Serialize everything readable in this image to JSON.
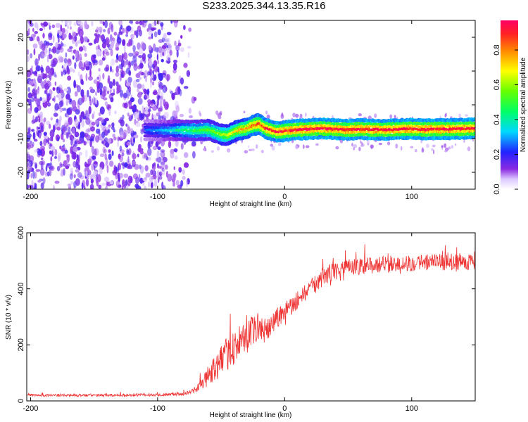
{
  "title": "S233.2025.344.13.35.R16",
  "chart_data": [
    {
      "type": "heatmap",
      "xlabel": "Height of straight line (km)",
      "ylabel": "Frequency (Hz)",
      "xlim": [
        -203,
        150
      ],
      "ylim": [
        -25,
        25
      ],
      "x_ticks": [
        -200,
        -100,
        0,
        100
      ],
      "y_ticks": [
        -20,
        -10,
        0,
        10,
        20
      ],
      "x_tick_labels": [
        "-200",
        "-100",
        "0",
        "100"
      ],
      "y_tick_labels": [
        "-20",
        "-10",
        "0",
        "10",
        "20"
      ],
      "colorbar": {
        "label": "Normalized spectral amplitude",
        "range": [
          0.0,
          0.97
        ],
        "ticks": [
          0.0,
          0.2,
          0.4,
          0.6,
          0.8
        ],
        "tick_labels": [
          "0.0",
          "0.2",
          "0.4",
          "0.6",
          "0.8"
        ]
      },
      "signal_track": {
        "x": [
          -110,
          -90,
          -80,
          -70,
          -60,
          -50,
          -45,
          -40,
          -35,
          -30,
          -25,
          -20,
          -15,
          -10,
          -5,
          0,
          10,
          20,
          30,
          40,
          50,
          60,
          70,
          80,
          90,
          100,
          110,
          120,
          130,
          140,
          150
        ],
        "frequency": [
          -7.5,
          -7.6,
          -7.5,
          -7.6,
          -7.4,
          -8.8,
          -9.0,
          -8.0,
          -7.4,
          -7.0,
          -6.2,
          -5.6,
          -7.0,
          -7.6,
          -8.0,
          -7.8,
          -7.4,
          -7.2,
          -7.0,
          -7.2,
          -7.4,
          -7.2,
          -7.3,
          -7.4,
          -7.2,
          -7.1,
          -7.3,
          -7.2,
          -7.2,
          -7.1,
          -7.0
        ],
        "amplitude": [
          0.25,
          0.35,
          0.45,
          0.5,
          0.55,
          0.6,
          0.65,
          0.7,
          0.75,
          0.8,
          0.85,
          0.9,
          0.9,
          0.92,
          0.92,
          0.92,
          0.95,
          0.95,
          0.95,
          0.95,
          0.95,
          0.95,
          0.95,
          0.95,
          0.95,
          0.95,
          0.95,
          0.95,
          0.95,
          0.95,
          0.95
        ]
      },
      "noise_region_x": [
        -203,
        -70
      ],
      "grid": false
    },
    {
      "type": "line",
      "xlabel": "Height of straight line (km)",
      "ylabel": "SNR (10 * v/v)",
      "xlim": [
        -203,
        150
      ],
      "ylim": [
        0,
        600
      ],
      "x_ticks": [
        -200,
        -100,
        0,
        100
      ],
      "y_ticks": [
        0,
        200,
        400,
        600
      ],
      "x_tick_labels": [
        "-200",
        "-100",
        "0",
        "100"
      ],
      "y_tick_labels": [
        "0",
        "200",
        "400",
        "600"
      ],
      "series": [
        {
          "color": "#ee3333",
          "x": [
            -203,
            -180,
            -160,
            -140,
            -120,
            -100,
            -90,
            -80,
            -75,
            -70,
            -65,
            -60,
            -55,
            -50,
            -45,
            -40,
            -35,
            -30,
            -25,
            -20,
            -15,
            -10,
            -5,
            0,
            5,
            10,
            15,
            20,
            25,
            30,
            35,
            40,
            50,
            60,
            70,
            80,
            90,
            100,
            110,
            120,
            130,
            140,
            150
          ],
          "y": [
            20,
            20,
            20,
            20,
            21,
            22,
            23,
            25,
            30,
            40,
            60,
            90,
            120,
            140,
            170,
            190,
            210,
            220,
            250,
            270,
            230,
            280,
            300,
            320,
            340,
            360,
            380,
            400,
            420,
            440,
            455,
            465,
            475,
            480,
            485,
            488,
            490,
            492,
            494,
            495,
            496,
            497,
            498
          ],
          "spread": [
            8,
            8,
            8,
            8,
            8,
            8,
            9,
            10,
            12,
            18,
            40,
            60,
            80,
            90,
            100,
            110,
            100,
            95,
            90,
            85,
            80,
            75,
            70,
            60,
            55,
            55,
            55,
            55,
            55,
            55,
            55,
            55,
            50,
            50,
            50,
            50,
            50,
            50,
            50,
            50,
            50,
            50,
            50
          ]
        }
      ],
      "grid": false
    }
  ]
}
